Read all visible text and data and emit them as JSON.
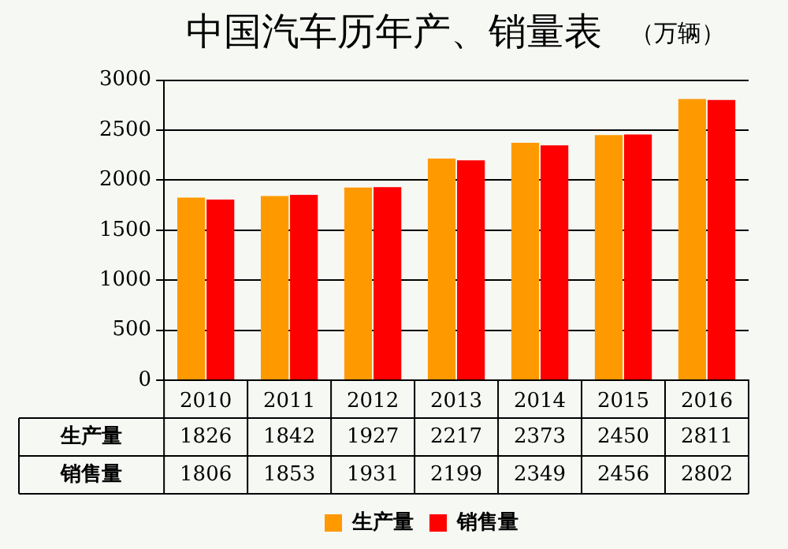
{
  "chart_data": {
    "type": "bar",
    "title": "中国汽车历年产、销量表",
    "subtitle": "（万辆）",
    "categories": [
      "2010",
      "2011",
      "2012",
      "2013",
      "2014",
      "2015",
      "2016"
    ],
    "series": [
      {
        "name": "生产量",
        "color": "#ff9900",
        "values": [
          1826,
          1842,
          1927,
          2217,
          2373,
          2450,
          2811
        ]
      },
      {
        "name": "销售量",
        "color": "#ff0000",
        "values": [
          1806,
          1853,
          1931,
          2199,
          2349,
          2456,
          2802
        ]
      }
    ],
    "ylim": [
      0,
      3000
    ],
    "yticks": [
      0,
      500,
      1000,
      1500,
      2000,
      2500,
      3000
    ],
    "grid": "y",
    "legend": "bottom",
    "data_labels": true
  }
}
